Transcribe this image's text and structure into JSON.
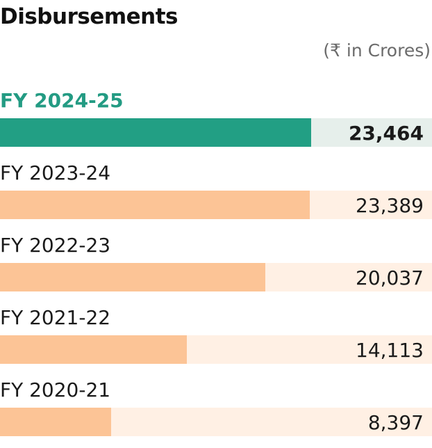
{
  "title": "Disbursements",
  "unit_label": "(₹ in Crores)",
  "colors": {
    "highlight_bar": "#229f84",
    "highlight_track": "#e6efeb",
    "bar": "#fcc496",
    "track": "#fff0e4",
    "highlight_text": "#239b83"
  },
  "chart_data": {
    "type": "bar",
    "orientation": "horizontal",
    "title": "Disbursements",
    "unit": "(₹ in Crores)",
    "categories": [
      "FY 2024-25",
      "FY 2023-24",
      "FY 2022-23",
      "FY 2021-22",
      "FY 2020-21"
    ],
    "labels": [
      "23,464",
      "23,389",
      "20,037",
      "14,113",
      "8,397"
    ],
    "values": [
      23464,
      23389,
      20037,
      14113,
      8397
    ],
    "highlighted": "FY 2024-25",
    "xlim": [
      0,
      32600
    ]
  }
}
